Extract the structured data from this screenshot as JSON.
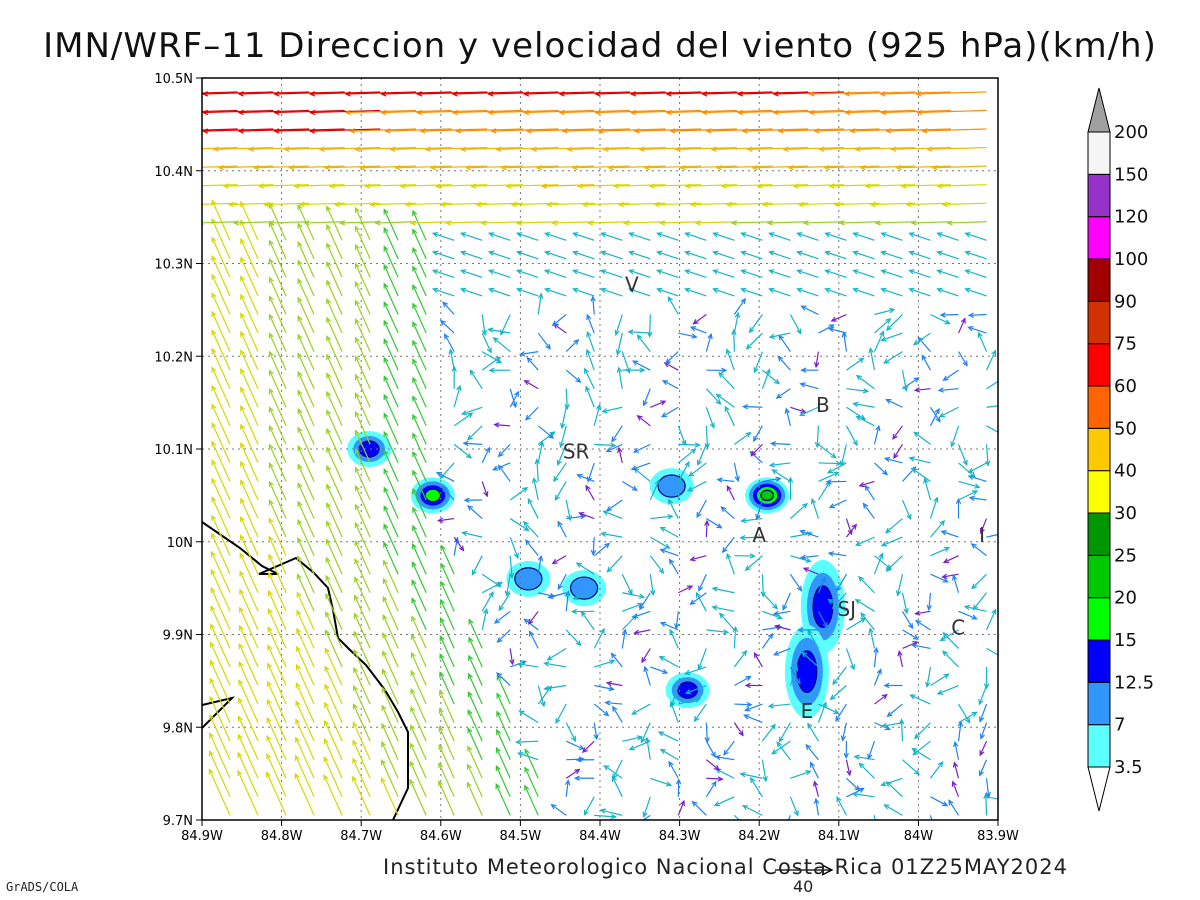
{
  "title": "IMN/WRF–11 Direccion y velocidad del viento (925 hPa)(km/h)",
  "footer": "Instituto Meteorologico Nacional Costa Rica 01Z25MAY2024",
  "software_credit": "GrADS/COLA",
  "reference_vector": {
    "label": "40",
    "speed": 40
  },
  "map": {
    "lon_range": [
      -84.9,
      -83.9
    ],
    "lat_range": [
      9.7,
      10.5
    ],
    "lon_ticks": [
      "84.9W",
      "84.8W",
      "84.7W",
      "84.6W",
      "84.5W",
      "84.4W",
      "84.3W",
      "84.2W",
      "84.1W",
      "84W",
      "83.9W"
    ],
    "lat_ticks": [
      "9.7N",
      "9.8N",
      "9.9N",
      "10N",
      "10.1N",
      "10.2N",
      "10.3N",
      "10.4N",
      "10.5N"
    ],
    "gridlines": "dotted",
    "place_labels": [
      {
        "text": "V",
        "lon": -84.36,
        "lat": 10.27
      },
      {
        "text": "B",
        "lon": -84.12,
        "lat": 10.14
      },
      {
        "text": "SR",
        "lon": -84.43,
        "lat": 10.09
      },
      {
        "text": "A",
        "lon": -84.2,
        "lat": 10.0
      },
      {
        "text": "I",
        "lon": -83.92,
        "lat": 10.0
      },
      {
        "text": "SJ",
        "lon": -84.09,
        "lat": 9.92
      },
      {
        "text": "C",
        "lon": -83.95,
        "lat": 9.9
      },
      {
        "text": "E",
        "lon": -84.14,
        "lat": 9.81
      }
    ]
  },
  "colorbar": {
    "levels": [
      "3.5",
      "7",
      "12.5",
      "15",
      "20",
      "25",
      "30",
      "40",
      "50",
      "60",
      "75",
      "90",
      "100",
      "120",
      "150",
      "200"
    ],
    "colors": [
      "#5cffff",
      "#3296ff",
      "#0000ff",
      "#00ff00",
      "#00c800",
      "#009600",
      "#ffff00",
      "#ffc800",
      "#ff6400",
      "#ff0000",
      "#d23200",
      "#a00000",
      "#ff00ff",
      "#9632c8",
      "#f5f5f5",
      "#a0a0a0"
    ],
    "extends": "both"
  },
  "shaded_areas_kmh": [
    {
      "lon": -84.69,
      "lat": 10.1,
      "max": 12.5
    },
    {
      "lon": -84.61,
      "lat": 10.05,
      "max": 15
    },
    {
      "lon": -84.19,
      "lat": 10.05,
      "max": 20
    },
    {
      "lon": -84.31,
      "lat": 10.06,
      "max": 7
    },
    {
      "lon": -84.49,
      "lat": 9.96,
      "max": 7
    },
    {
      "lon": -84.42,
      "lat": 9.95,
      "max": 7
    },
    {
      "lon": -84.12,
      "lat": 9.93,
      "max": 12.5
    },
    {
      "lon": -84.14,
      "lat": 9.86,
      "max": 12.5
    },
    {
      "lon": -84.29,
      "lat": 9.84,
      "max": 12.5
    }
  ]
}
